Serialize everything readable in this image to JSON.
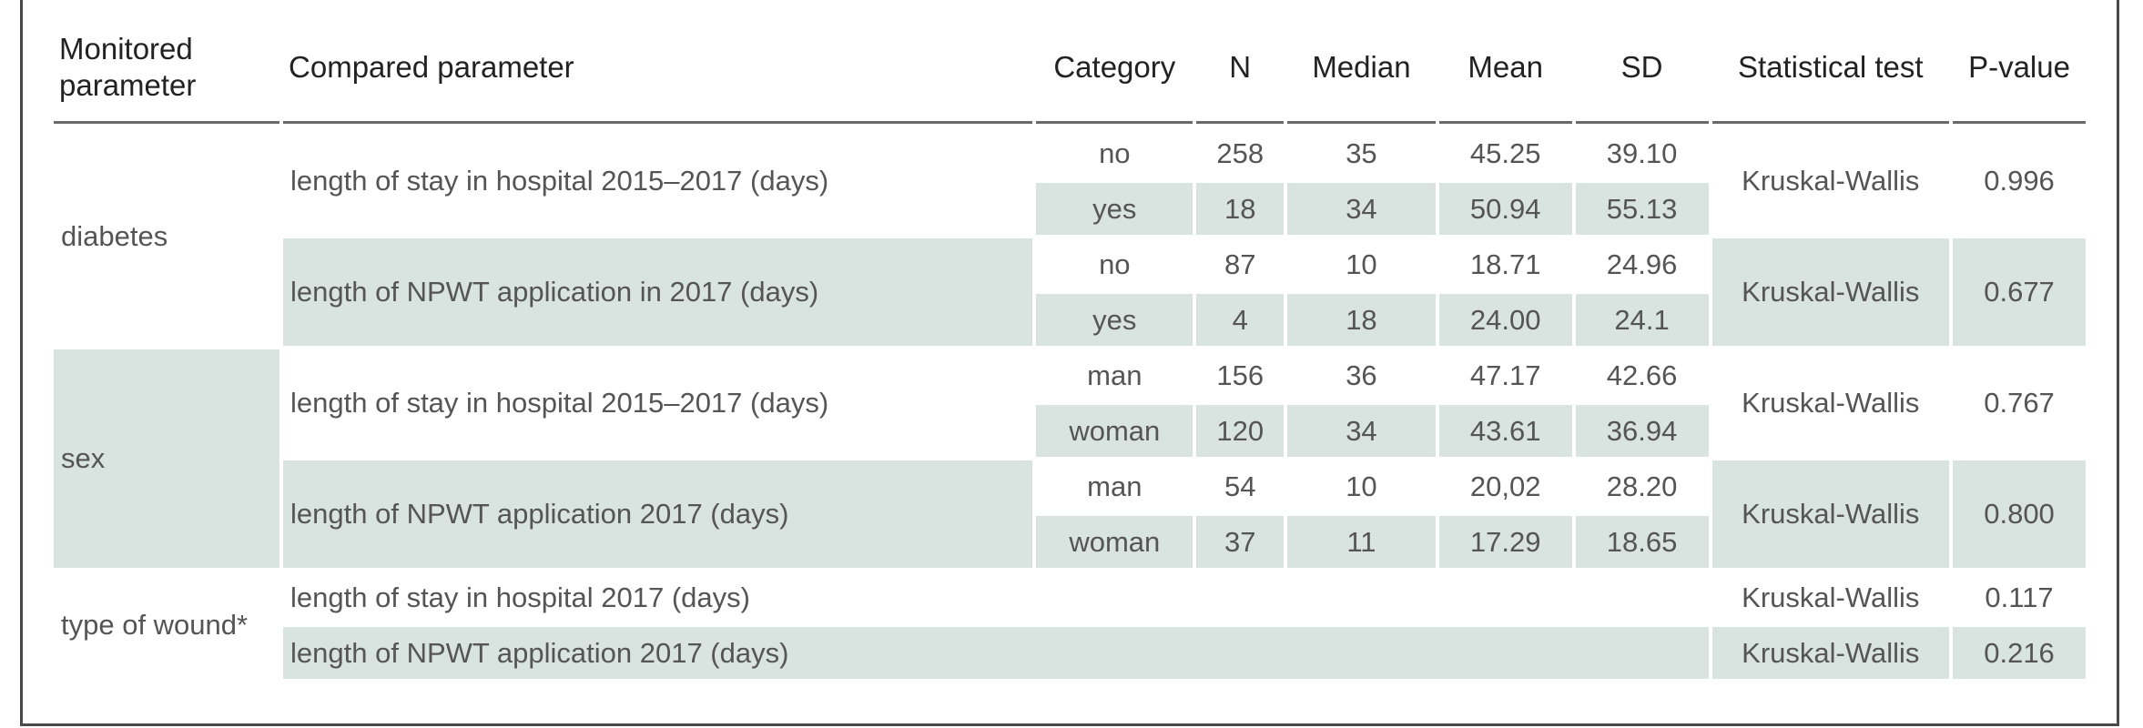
{
  "headers": {
    "monitored": "Monitored parameter",
    "compared": "Compared parameter",
    "category": "Category",
    "n": "N",
    "median": "Median",
    "mean": "Mean",
    "sd": "SD",
    "test": "Statistical test",
    "pvalue": "P-value"
  },
  "groups": [
    {
      "monitored": "diabetes",
      "comparisons": [
        {
          "compared": "length of stay in hospital 2015–2017 (days)",
          "test": "Kruskal-Wallis",
          "pvalue": "0.996",
          "rows": [
            {
              "category": "no",
              "n": "258",
              "median": "35",
              "mean": "45.25",
              "sd": "39.10"
            },
            {
              "category": "yes",
              "n": "18",
              "median": "34",
              "mean": "50.94",
              "sd": "55.13"
            }
          ]
        },
        {
          "compared": "length of NPWT application in 2017 (days)",
          "test": "Kruskal-Wallis",
          "pvalue": "0.677",
          "rows": [
            {
              "category": "no",
              "n": "87",
              "median": "10",
              "mean": "18.71",
              "sd": "24.96"
            },
            {
              "category": "yes",
              "n": "4",
              "median": "18",
              "mean": "24.00",
              "sd": "24.1"
            }
          ]
        }
      ]
    },
    {
      "monitored": "sex",
      "comparisons": [
        {
          "compared": "length of stay in hospital 2015–2017 (days)",
          "test": "Kruskal-Wallis",
          "pvalue": "0.767",
          "rows": [
            {
              "category": "man",
              "n": "156",
              "median": "36",
              "mean": "47.17",
              "sd": "42.66"
            },
            {
              "category": "woman",
              "n": "120",
              "median": "34",
              "mean": "43.61",
              "sd": "36.94"
            }
          ]
        },
        {
          "compared": "length of NPWT application 2017 (days)",
          "test": "Kruskal-Wallis",
          "pvalue": "0.800",
          "rows": [
            {
              "category": "man",
              "n": "54",
              "median": "10",
              "mean": "20,02",
              "sd": "28.20"
            },
            {
              "category": "woman",
              "n": "37",
              "median": "11",
              "mean": "17.29",
              "sd": "18.65"
            }
          ]
        }
      ]
    },
    {
      "monitored": "type of wound*",
      "comparisons": [
        {
          "compared": "length of stay in hospital 2017 (days)",
          "test": "Kruskal-Wallis",
          "pvalue": "0.117"
        },
        {
          "compared": "length of NPWT application 2017 (days)",
          "test": "Kruskal-Wallis",
          "pvalue": "0.216"
        }
      ]
    }
  ],
  "colors": {
    "shade": "#d9e3df",
    "rule": "#6a6a6a"
  }
}
